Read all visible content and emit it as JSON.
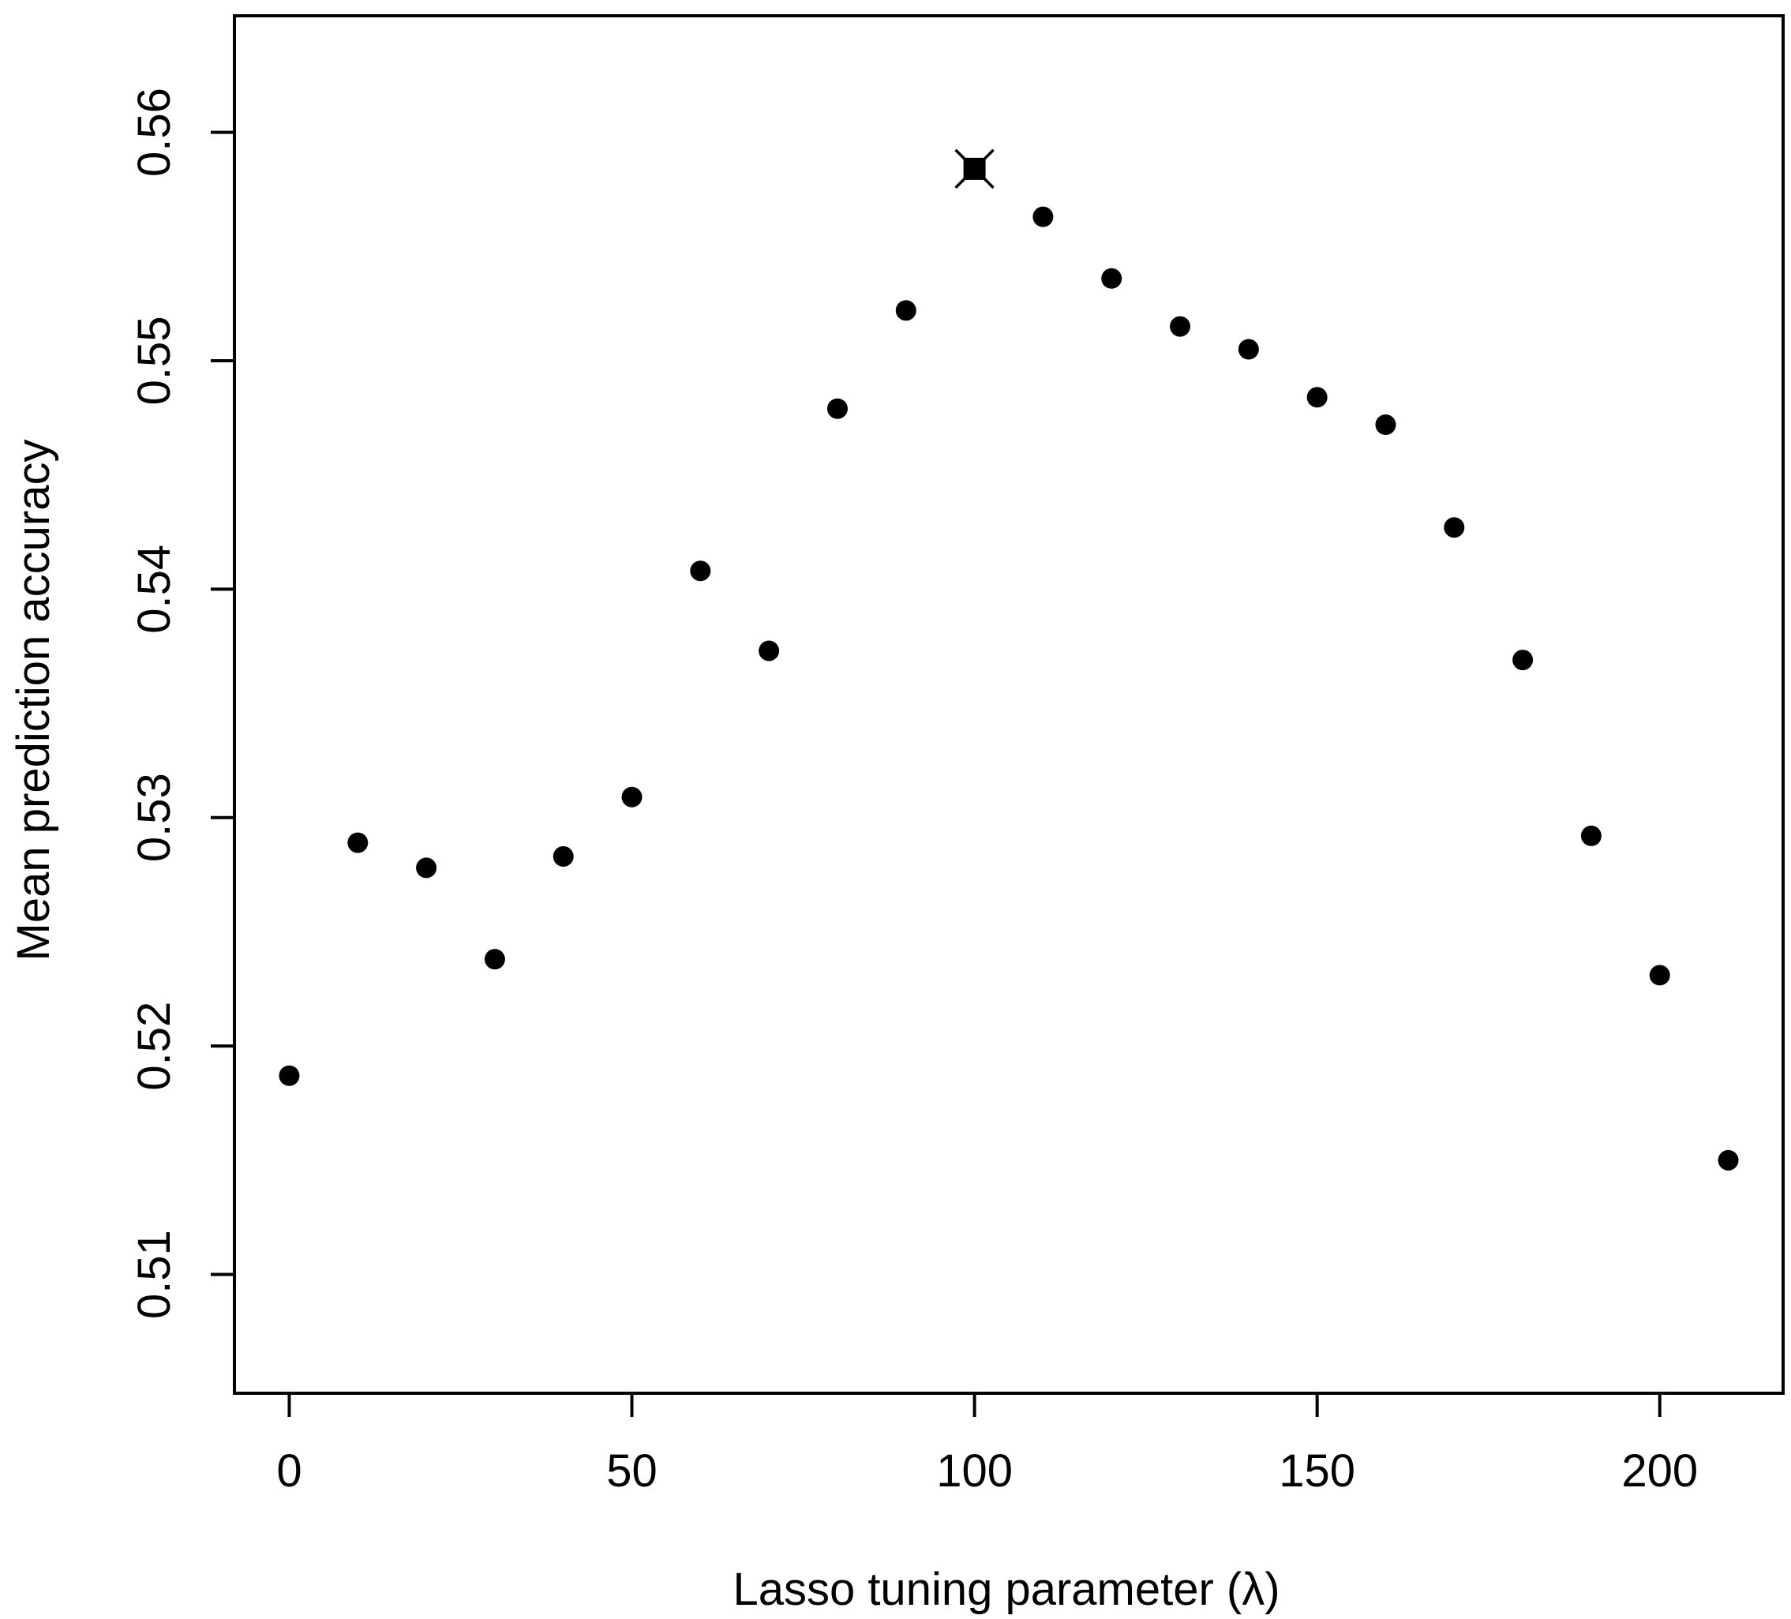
{
  "chart_data": {
    "type": "scatter",
    "title": "",
    "xlabel": "Lasso tuning parameter (λ)",
    "ylabel": "Mean prediction accuracy",
    "xlim": [
      -8,
      218
    ],
    "ylim": [
      0.5048,
      0.5651
    ],
    "x_ticks": [
      0,
      50,
      100,
      150,
      200
    ],
    "x_tick_labels": [
      "0",
      "50",
      "100",
      "150",
      "200"
    ],
    "y_ticks": [
      0.51,
      0.52,
      0.53,
      0.54,
      0.55,
      0.56
    ],
    "y_tick_labels": [
      "0.51",
      "0.52",
      "0.53",
      "0.54",
      "0.55",
      "0.56"
    ],
    "grid": false,
    "legend": "none",
    "series": [
      {
        "x": [
          0,
          10,
          20,
          30,
          40,
          50,
          60,
          70,
          80,
          90,
          100,
          110,
          120,
          130,
          140,
          150,
          160,
          170,
          180,
          190,
          200,
          210
        ],
        "y": [
          0.5187,
          0.5289,
          0.5278,
          0.5238,
          0.5283,
          0.5309,
          0.5408,
          0.5373,
          0.5479,
          0.5522,
          0.5584,
          0.5563,
          0.5536,
          0.5515,
          0.5505,
          0.5484,
          0.5472,
          0.5427,
          0.5369,
          0.5292,
          0.5231,
          0.515
        ],
        "color": "#000000"
      }
    ],
    "highlight": {
      "x": 100,
      "y": 0.5584,
      "marker": "square-with-cross"
    }
  }
}
